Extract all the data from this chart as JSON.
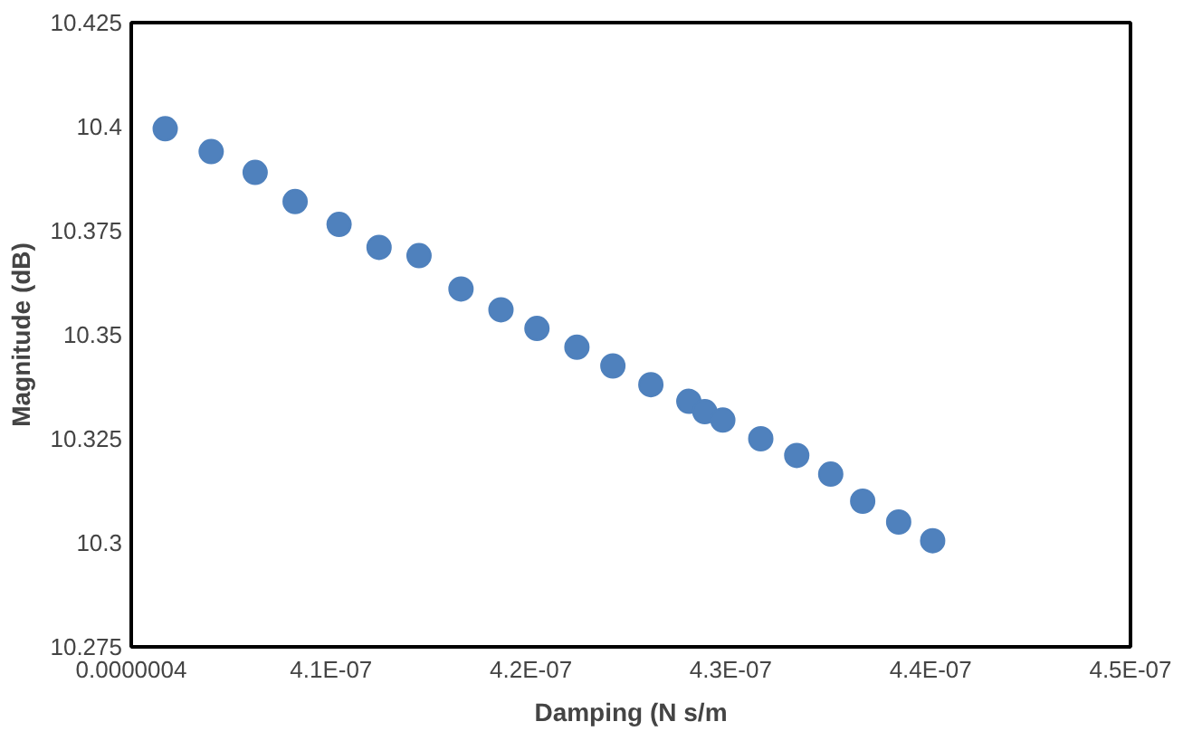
{
  "chart_data": {
    "type": "scatter",
    "xlabel": "Damping (N s/m",
    "ylabel": "Magnitude (dB)",
    "x": [
      4.017e-07,
      4.04e-07,
      4.062e-07,
      4.082e-07,
      4.104e-07,
      4.124e-07,
      4.144e-07,
      4.165e-07,
      4.185e-07,
      4.203e-07,
      4.223e-07,
      4.241e-07,
      4.26e-07,
      4.279e-07,
      4.287e-07,
      4.296e-07,
      4.315e-07,
      4.333e-07,
      4.35e-07,
      4.366e-07,
      4.384e-07,
      4.401e-07
    ],
    "series": [
      {
        "color": "#4f81bd",
        "values": [
          10.3995,
          10.394,
          10.389,
          10.382,
          10.3765,
          10.371,
          10.369,
          10.361,
          10.356,
          10.3515,
          10.347,
          10.3425,
          10.338,
          10.334,
          10.3315,
          10.3295,
          10.325,
          10.321,
          10.3165,
          10.31,
          10.305,
          10.3005
        ]
      }
    ],
    "xlim": [
      4e-07,
      4.5e-07
    ],
    "xticks": [
      {
        "value": 4e-07,
        "label": "0.0000004"
      },
      {
        "value": 4.1e-07,
        "label": "4.1E-07"
      },
      {
        "value": 4.2e-07,
        "label": "4.2E-07"
      },
      {
        "value": 4.3e-07,
        "label": "4.3E-07"
      },
      {
        "value": 4.4e-07,
        "label": "4.4E-07"
      },
      {
        "value": 4.5e-07,
        "label": "4.5E-07"
      }
    ],
    "ylim": [
      10.275,
      10.425
    ],
    "yticks": [
      10.275,
      10.3,
      10.325,
      10.35,
      10.375,
      10.4,
      10.425
    ],
    "marker": "circle",
    "grid": false
  }
}
